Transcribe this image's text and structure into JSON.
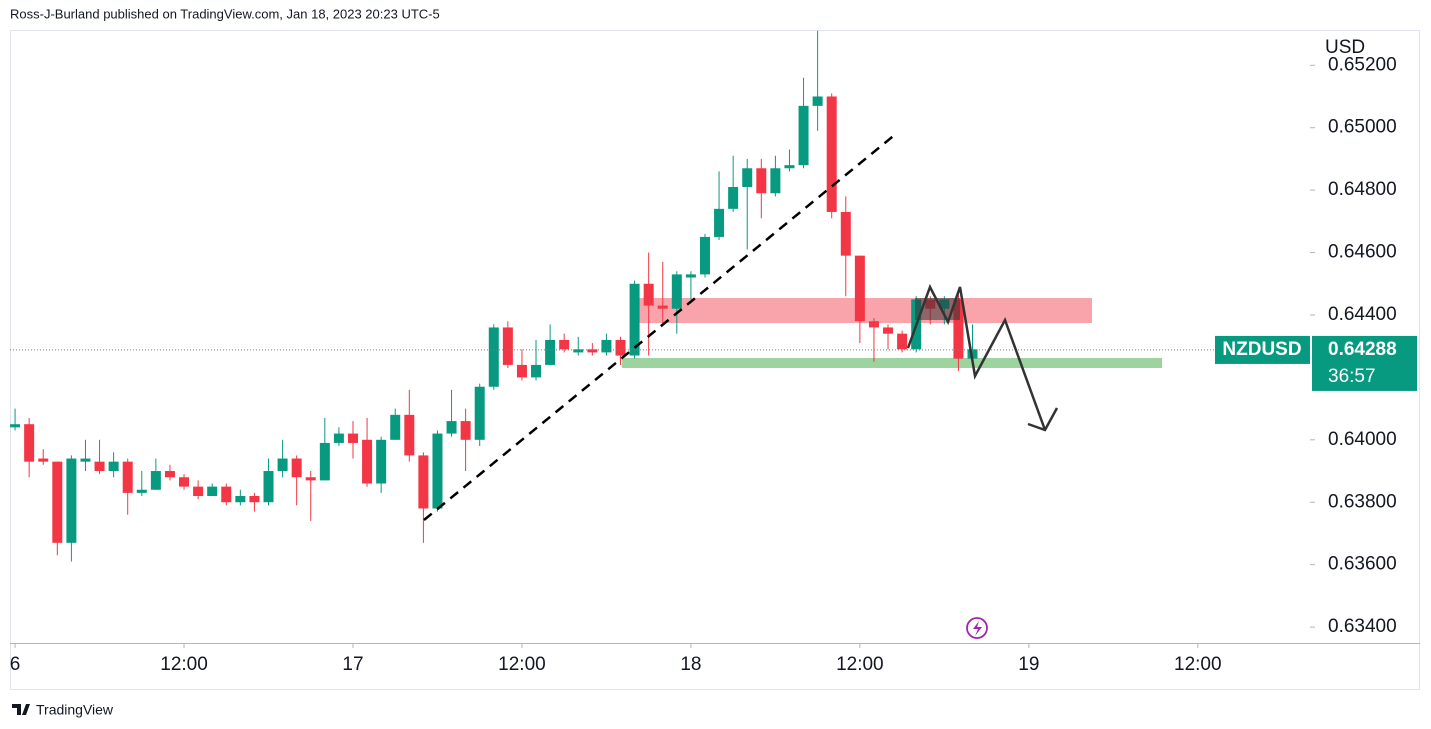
{
  "header": "Ross-J-Burland published on TradingView.com, Jan 18, 2023 20:23 UTC-5",
  "footer_brand": "TradingView",
  "chart_data": {
    "type": "candlestick",
    "currency": "USD",
    "symbol": "NZDUSD",
    "last_price": 0.64288,
    "countdown": "36:57",
    "up_color": "#089981",
    "down_color": "#f23645",
    "xlim": [
      -0.36,
      91.97
    ],
    "ylim": [
      0.63349,
      0.65313
    ],
    "xticks": [
      {
        "value": 0,
        "label": "6"
      },
      {
        "value": 12,
        "label": "12:00"
      },
      {
        "value": 24,
        "label": "17"
      },
      {
        "value": 36,
        "label": "12:00"
      },
      {
        "value": 48,
        "label": "18"
      },
      {
        "value": 60,
        "label": "12:00"
      },
      {
        "value": 72,
        "label": "19"
      },
      {
        "value": 84,
        "label": "12:00"
      }
    ],
    "yticks": [
      {
        "value": 0.634,
        "label": "0.63400"
      },
      {
        "value": 0.636,
        "label": "0.63600"
      },
      {
        "value": 0.638,
        "label": "0.63800"
      },
      {
        "value": 0.64,
        "label": "0.64000"
      },
      {
        "value": 0.644,
        "label": "0.64400"
      },
      {
        "value": 0.646,
        "label": "0.64600"
      },
      {
        "value": 0.648,
        "label": "0.64800"
      },
      {
        "value": 0.65,
        "label": "0.65000"
      },
      {
        "value": 0.652,
        "label": "0.65200"
      }
    ],
    "x": [
      0,
      1,
      2,
      3,
      4,
      5,
      6,
      7,
      8,
      9,
      10,
      11,
      12,
      13,
      14,
      15,
      16,
      17,
      18,
      19,
      20,
      21,
      22,
      23,
      24,
      25,
      26,
      27,
      28,
      29,
      30,
      31,
      32,
      33,
      34,
      35,
      36,
      37,
      38,
      39,
      40,
      41,
      42,
      43,
      44,
      45,
      46,
      47,
      48,
      49,
      50,
      51,
      52,
      53,
      54,
      55,
      56,
      57,
      58,
      59,
      60,
      61,
      62,
      63,
      64,
      65,
      66,
      67,
      68
    ],
    "open": [
      0.6404,
      0.6405,
      0.6394,
      0.6393,
      0.6367,
      0.6393,
      0.6393,
      0.639,
      0.6393,
      0.6383,
      0.6384,
      0.639,
      0.6388,
      0.6385,
      0.6382,
      0.6385,
      0.638,
      0.6382,
      0.638,
      0.639,
      0.6394,
      0.6388,
      0.6387,
      0.6399,
      0.6402,
      0.64,
      0.6386,
      0.64,
      0.6408,
      0.6395,
      0.6378,
      0.6402,
      0.6406,
      0.64,
      0.6417,
      0.6436,
      0.6424,
      0.642,
      0.6424,
      0.6432,
      0.6428,
      0.6429,
      0.6428,
      0.6432,
      0.6427,
      0.645,
      0.6443,
      0.6442,
      0.6452,
      0.6453,
      0.6465,
      0.6474,
      0.6481,
      0.6487,
      0.6479,
      0.6487,
      0.6488,
      0.6507,
      0.651,
      0.6473,
      0.6459,
      0.6438,
      0.6436,
      0.6434,
      0.6429,
      0.6445,
      0.6442,
      0.6445,
      0.6426
    ],
    "high": [
      0.641,
      0.6407,
      0.6397,
      0.6393,
      0.6395,
      0.64,
      0.64,
      0.6396,
      0.6394,
      0.639,
      0.6394,
      0.6392,
      0.6389,
      0.6387,
      0.6386,
      0.6386,
      0.6384,
      0.6383,
      0.6394,
      0.64,
      0.6395,
      0.639,
      0.6407,
      0.6404,
      0.6406,
      0.6407,
      0.6401,
      0.641,
      0.6416,
      0.6396,
      0.6403,
      0.6416,
      0.641,
      0.6418,
      0.6437,
      0.6438,
      0.6429,
      0.6432,
      0.6437,
      0.6434,
      0.6433,
      0.6431,
      0.6434,
      0.6433,
      0.6451,
      0.646,
      0.6457,
      0.6454,
      0.6454,
      0.6466,
      0.6486,
      0.6491,
      0.649,
      0.649,
      0.6491,
      0.6493,
      0.6516,
      0.6531,
      0.6511,
      0.6478,
      0.6459,
      0.6439,
      0.6437,
      0.6435,
      0.6446,
      0.6446,
      0.6446,
      0.6447,
      0.6437
    ],
    "low": [
      0.6403,
      0.6388,
      0.6392,
      0.6363,
      0.6361,
      0.639,
      0.6389,
      0.6388,
      0.6376,
      0.6382,
      0.6384,
      0.6387,
      0.6384,
      0.6381,
      0.6382,
      0.6379,
      0.6379,
      0.6377,
      0.6379,
      0.6388,
      0.6379,
      0.6374,
      0.6387,
      0.6398,
      0.6394,
      0.6385,
      0.6383,
      0.64,
      0.6393,
      0.6367,
      0.6377,
      0.6401,
      0.639,
      0.6398,
      0.6416,
      0.6423,
      0.6419,
      0.6419,
      0.6424,
      0.6428,
      0.6427,
      0.6427,
      0.6427,
      0.6424,
      0.6426,
      0.6427,
      0.6437,
      0.6434,
      0.6445,
      0.6452,
      0.6464,
      0.6473,
      0.6461,
      0.6471,
      0.6478,
      0.6486,
      0.6487,
      0.6499,
      0.6471,
      0.6446,
      0.6431,
      0.6425,
      0.6429,
      0.6428,
      0.6428,
      0.6437,
      0.6437,
      0.6422,
      0.6425
    ],
    "close": [
      0.6405,
      0.6393,
      0.6393,
      0.6367,
      0.6394,
      0.6394,
      0.639,
      0.6393,
      0.6383,
      0.6384,
      0.639,
      0.6388,
      0.6385,
      0.6382,
      0.6385,
      0.638,
      0.6382,
      0.638,
      0.639,
      0.6394,
      0.6388,
      0.6387,
      0.6399,
      0.6402,
      0.6399,
      0.6386,
      0.64,
      0.6408,
      0.6395,
      0.6378,
      0.6402,
      0.6406,
      0.64,
      0.6417,
      0.6436,
      0.6424,
      0.642,
      0.6424,
      0.6432,
      0.6429,
      0.6429,
      0.6428,
      0.6432,
      0.6427,
      0.645,
      0.6443,
      0.6442,
      0.6453,
      0.6453,
      0.6465,
      0.6474,
      0.6481,
      0.6487,
      0.6479,
      0.6487,
      0.6488,
      0.6507,
      0.651,
      0.6473,
      0.6459,
      0.6438,
      0.6436,
      0.6434,
      0.6429,
      0.6445,
      0.6442,
      0.6445,
      0.6426,
      0.6429
    ]
  }
}
